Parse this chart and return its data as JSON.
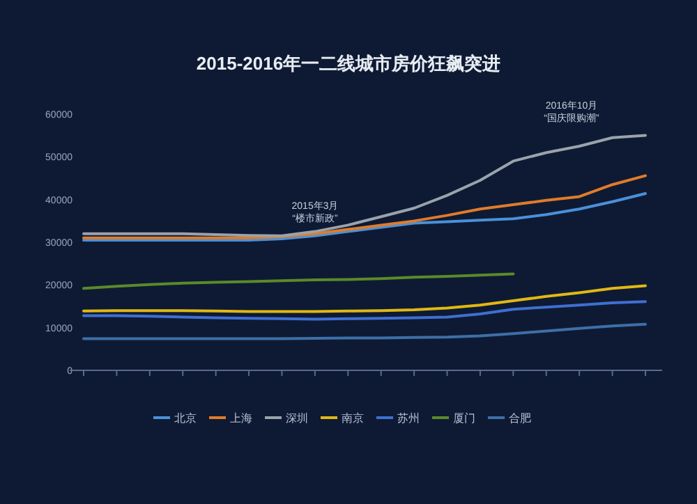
{
  "chart_data": {
    "type": "line",
    "title": "2015-2016年一二线城市房价狂飙突进",
    "categories": [
      null,
      null,
      null,
      null,
      null,
      null,
      null,
      null,
      null,
      null,
      null,
      null,
      null,
      null,
      null,
      null,
      null,
      null
    ],
    "ylim": [
      0,
      60000
    ],
    "yticks": [
      0,
      10000,
      20000,
      30000,
      40000,
      50000,
      60000
    ],
    "series": [
      {
        "name": "北京",
        "color": "#4a90d9",
        "values": [
          30500,
          30500,
          30500,
          30500,
          30500,
          30500,
          30800,
          31500,
          32500,
          33500,
          34500,
          34800,
          35200,
          35500,
          36500,
          37800,
          39500,
          41400
        ]
      },
      {
        "name": "上海",
        "color": "#e07b2a",
        "values": [
          31000,
          31000,
          31000,
          31000,
          31000,
          31000,
          31300,
          32000,
          33000,
          34000,
          35000,
          36300,
          37800,
          38800,
          39800,
          40700,
          43500,
          45600
        ]
      },
      {
        "name": "深圳",
        "color": "#9aa3ad",
        "values": [
          32000,
          32000,
          32000,
          32000,
          31800,
          31600,
          31500,
          32500,
          34000,
          36000,
          38000,
          41000,
          44500,
          49000,
          51000,
          52500,
          54500,
          55000
        ]
      },
      {
        "name": "南京",
        "color": "#e0b814",
        "values": [
          13900,
          14000,
          14000,
          14000,
          13900,
          13800,
          13800,
          13800,
          13900,
          14000,
          14200,
          14600,
          15300,
          16300,
          17300,
          18200,
          19200,
          19800
        ]
      },
      {
        "name": "苏州",
        "color": "#3f6fd1",
        "values": [
          12800,
          12800,
          12700,
          12500,
          12300,
          12200,
          12100,
          12000,
          12100,
          12200,
          12300,
          12500,
          13200,
          14300,
          14800,
          15300,
          15800,
          16100
        ]
      },
      {
        "name": "厦门",
        "color": "#5a8a2a",
        "values": [
          19200,
          19700,
          20100,
          20400,
          20600,
          20800,
          21000,
          21200,
          21300,
          21500,
          21800,
          22000,
          22300,
          22600,
          null,
          null,
          null,
          null
        ]
      },
      {
        "name": "合肥",
        "color": "#3d6fa8",
        "values": [
          7400,
          7400,
          7400,
          7400,
          7400,
          7400,
          7400,
          7500,
          7600,
          7600,
          7700,
          7800,
          8100,
          8600,
          9200,
          9800,
          10400,
          10800
        ]
      }
    ],
    "annotations": [
      "2015年3月\n“楼市新政”",
      "2016年10月\n“国庆限购潮”"
    ],
    "grid": false,
    "legend": "bottom",
    "marker": "none",
    "line_style": "solid"
  }
}
